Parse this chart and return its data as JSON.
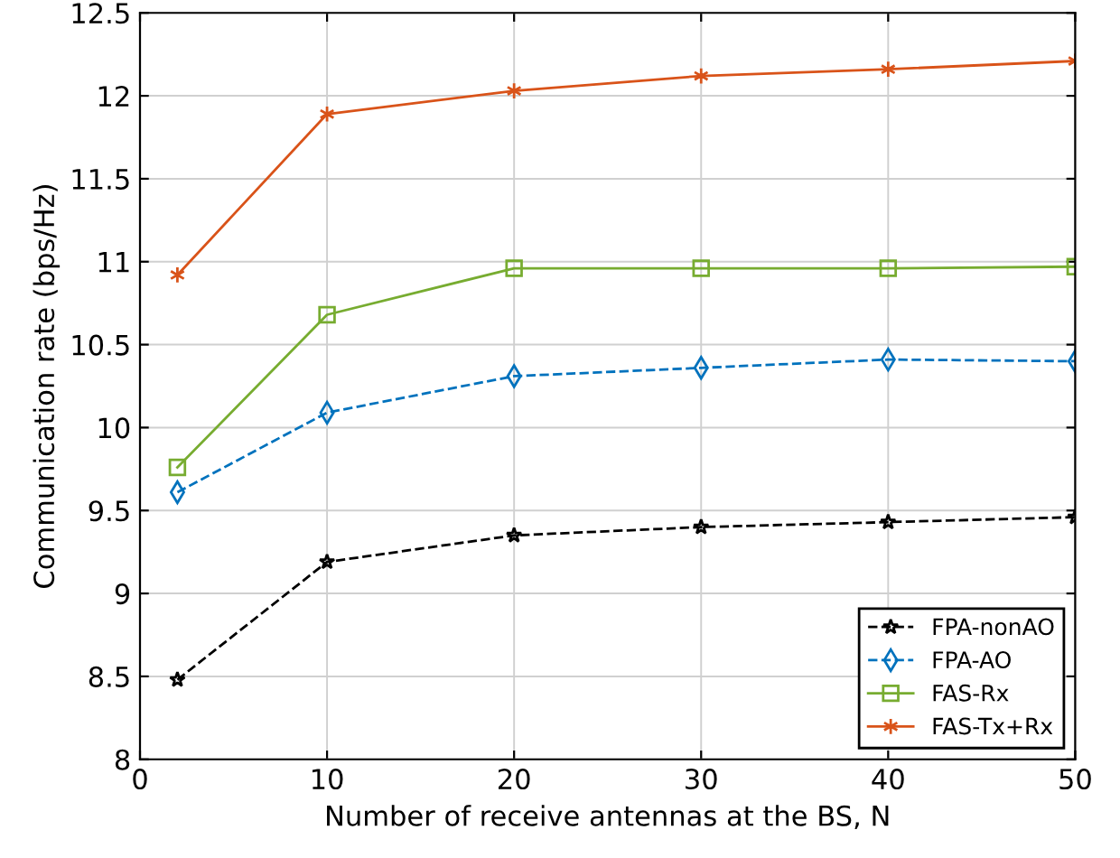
{
  "chart_data": {
    "type": "line",
    "xlabel": "Number of receive antennas at the BS, N",
    "ylabel": "Communication rate (bps/Hz)",
    "x": [
      2,
      10,
      20,
      30,
      40,
      50
    ],
    "series": [
      {
        "name": "FPA-nonAO",
        "color": "#000000",
        "marker": "star",
        "line_style": "dashed",
        "values": [
          8.48,
          9.19,
          9.35,
          9.4,
          9.43,
          9.46
        ]
      },
      {
        "name": "FPA-AO",
        "color": "#0072bd",
        "marker": "diamond",
        "line_style": "dashed",
        "values": [
          9.61,
          10.09,
          10.31,
          10.36,
          10.41,
          10.4
        ]
      },
      {
        "name": "FAS-Rx",
        "color": "#77ac30",
        "marker": "square",
        "line_style": "solid",
        "values": [
          9.76,
          10.68,
          10.96,
          10.96,
          10.96,
          10.97
        ]
      },
      {
        "name": "FAS-Tx+Rx",
        "color": "#d95319",
        "marker": "cross",
        "line_style": "solid",
        "values": [
          10.92,
          11.89,
          12.03,
          12.12,
          12.16,
          12.21
        ]
      }
    ],
    "xlim": [
      0,
      50
    ],
    "xticks": [
      0,
      10,
      20,
      30,
      40,
      50
    ],
    "ylim": [
      8,
      12.5
    ],
    "yticks": [
      8,
      8.5,
      9,
      9.5,
      10,
      10.5,
      11,
      11.5,
      12,
      12.5
    ],
    "grid": true,
    "legend": "bottom right"
  }
}
